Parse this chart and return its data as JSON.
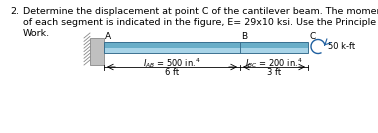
{
  "problem_number": "2.",
  "problem_text_line1": "Determine the displacement at point C of the cantilever beam. The moment of inertia",
  "problem_text_line2": "of each segment is indicated in the figure, E= 29x10 ksi. Use the Principle of Virtual",
  "problem_text_line3": "Work.",
  "label_A": "A",
  "label_B": "B",
  "label_C": "C",
  "label_IAB": "$I_{AB}$ = 500 in.$^4$",
  "label_IBC": "$I_{BC}$ = 200 in.$^4$",
  "label_load": "50 k-ft",
  "label_6ft": "6 ft",
  "label_3ft": "3 ft",
  "beam_color_light": "#a8d4e8",
  "beam_color_dark": "#6aaec8",
  "beam_color_mid": "#88c4dc",
  "wall_color": "#c0c0c0",
  "wall_hatch_color": "#888888",
  "background_color": "#ffffff",
  "text_fontsize": 6.8,
  "label_fontsize": 6.0,
  "dim_fontsize": 6.0
}
